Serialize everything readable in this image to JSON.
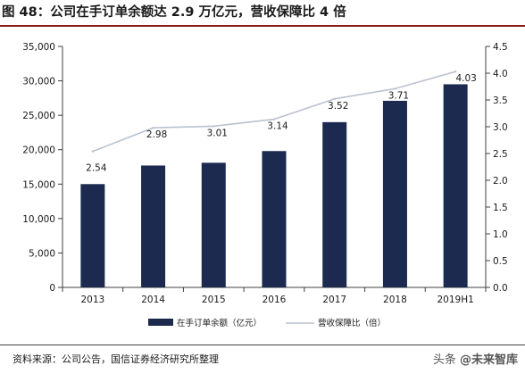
{
  "title": "图 48：公司在手订单余额达 2.9 万亿元，营收保障比 4 倍",
  "source": "资料来源：公司公告，国信证券经济研究所整理",
  "watermark": {
    "prefix": "头条",
    "brand": "@未来智库"
  },
  "chart_data": {
    "type": "bar",
    "categories": [
      "2013",
      "2014",
      "2015",
      "2016",
      "2017",
      "2018",
      "2019H1"
    ],
    "series": [
      {
        "name": "在手订单余额（亿元）",
        "type": "bar",
        "axis": "left",
        "color": "#1b2a4e",
        "values": [
          15000,
          17700,
          18100,
          19800,
          24000,
          27100,
          29500
        ]
      },
      {
        "name": "营收保障比（倍）",
        "type": "line",
        "axis": "right",
        "color": "#b8c2cf",
        "values": [
          2.54,
          2.98,
          3.01,
          3.14,
          3.52,
          3.71,
          4.03
        ],
        "labels": [
          "2.54",
          "2.98",
          "3.01",
          "3.14",
          "3.52",
          "3.71",
          "4.03"
        ]
      }
    ],
    "y_left": {
      "ylim": [
        0,
        35000
      ],
      "ticks": [
        0,
        5000,
        10000,
        15000,
        20000,
        25000,
        30000,
        35000
      ],
      "tick_labels": [
        "0",
        "5,000",
        "10,000",
        "15,000",
        "20,000",
        "25,000",
        "30,000",
        "35,000"
      ]
    },
    "y_right": {
      "ylim": [
        0,
        4.5
      ],
      "ticks": [
        0,
        0.5,
        1,
        1.5,
        2,
        2.5,
        3,
        3.5,
        4,
        4.5
      ],
      "tick_labels": [
        "0.0",
        "0.5",
        "1.0",
        "1.5",
        "2.0",
        "2.5",
        "3.0",
        "3.5",
        "4.0",
        "4.5"
      ]
    },
    "grid": false,
    "legend_position": "bottom"
  }
}
